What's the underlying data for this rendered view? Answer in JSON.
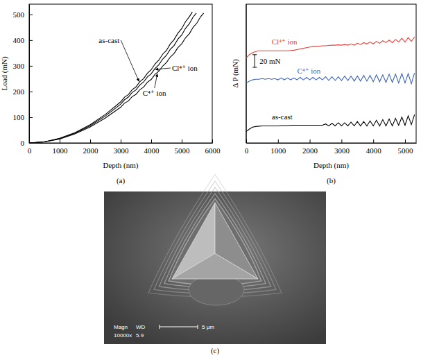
{
  "chart_data": [
    {
      "type": "line",
      "caption": "(a)",
      "x_label": "Depth (nm)",
      "y_label": "Load (mN)",
      "xlim": [
        0,
        6000
      ],
      "xticks": [
        0,
        1000,
        2000,
        3000,
        4000,
        5000,
        6000
      ],
      "ylim": [
        0,
        540
      ],
      "yticks": [
        0,
        100,
        200,
        300,
        400,
        500
      ],
      "series": [
        {
          "name": "as-cast",
          "color": "#000000",
          "x": [
            0,
            500,
            1000,
            1500,
            2000,
            2500,
            3000,
            3125,
            3250,
            3375,
            3500,
            3625,
            3750,
            3875,
            4000,
            4125,
            4250,
            4375,
            4500,
            4625,
            4750,
            4875,
            5000,
            5125,
            5250,
            5350
          ],
          "values": [
            0,
            4,
            18,
            40,
            71,
            111,
            160,
            178,
            188,
            207,
            218,
            238,
            250,
            271,
            285,
            307,
            322,
            345,
            360,
            385,
            402,
            427,
            445,
            472,
            491,
            510
          ]
        },
        {
          "name": "Cl⁴⁺ ion",
          "color": "#000000",
          "x": [
            0,
            500,
            1000,
            1500,
            2000,
            2500,
            3000,
            3125,
            3250,
            3375,
            3500,
            3625,
            3750,
            3875,
            4000,
            4125,
            4250,
            4375,
            4500,
            4625,
            4750,
            4875,
            5000,
            5125,
            5250,
            5375,
            5480
          ],
          "values": [
            0,
            4,
            17,
            38,
            67,
            105,
            151,
            168,
            178,
            196,
            206,
            225,
            237,
            257,
            269,
            290,
            304,
            326,
            341,
            364,
            379,
            404,
            420,
            446,
            464,
            490,
            505
          ]
        },
        {
          "name": "C⁴⁺ ion",
          "color": "#000000",
          "x": [
            0,
            500,
            1000,
            1500,
            2000,
            2500,
            3000,
            3125,
            3250,
            3375,
            3500,
            3625,
            3750,
            3875,
            4000,
            4125,
            4250,
            4375,
            4500,
            4625,
            4750,
            4875,
            5000,
            5125,
            5250,
            5375,
            5500,
            5625,
            5720
          ],
          "values": [
            0,
            4,
            15,
            35,
            62,
            97,
            139,
            155,
            163,
            180,
            189,
            207,
            217,
            236,
            247,
            267,
            279,
            299,
            313,
            334,
            348,
            371,
            386,
            409,
            425,
            450,
            467,
            492,
            505
          ]
        }
      ]
    },
    {
      "type": "line",
      "caption": "(b)",
      "x_label": "Depth (nm)",
      "y_label": "Δ P (mN)",
      "xlim": [
        0,
        5350
      ],
      "xticks": [
        0,
        1000,
        2000,
        3000,
        4000,
        5000
      ],
      "ylim": [
        0,
        220
      ],
      "tick_labels": "x",
      "scale_bar": {
        "value": 20,
        "label": "20 mN"
      },
      "x": [
        0,
        100,
        200,
        300,
        400,
        500,
        600,
        700,
        800,
        900,
        1000,
        1100,
        1200,
        1300,
        1400,
        1500,
        1600,
        1700,
        1800,
        1900,
        2000,
        2100,
        2200,
        2300,
        2400,
        2500,
        2600,
        2700,
        2800,
        2900,
        3000,
        3100,
        3200,
        3300,
        3400,
        3500,
        3600,
        3700,
        3800,
        3900,
        4000,
        4100,
        4200,
        4300,
        4400,
        4500,
        4600,
        4700,
        4800,
        4900,
        5000,
        5100,
        5200,
        5300
      ],
      "series": [
        {
          "name": "Cl⁴⁺ ion",
          "color": "#e8403a",
          "values": [
            135,
            140,
            143,
            145,
            146,
            146,
            146,
            146,
            146,
            146,
            146,
            146,
            146,
            146,
            146.5,
            147,
            148,
            149,
            150,
            151,
            152,
            152.5,
            153,
            153.5,
            154,
            154,
            154.5,
            155,
            155,
            155.5,
            155,
            156,
            155,
            157,
            155,
            158,
            156,
            159,
            157,
            160,
            157,
            161,
            158,
            162,
            159,
            163,
            159,
            164,
            160,
            166,
            160,
            167,
            161,
            168
          ]
        },
        {
          "name": "C⁴⁺ ion",
          "color": "#3d62b8",
          "values": [
            95,
            98,
            100,
            101,
            101,
            102,
            101,
            102,
            101,
            102,
            100,
            103,
            100,
            103,
            100,
            103,
            100,
            104,
            100,
            104,
            100,
            104,
            100,
            104,
            100,
            105,
            99,
            105,
            99,
            105,
            99,
            106,
            99,
            106,
            98,
            106,
            98,
            107,
            98,
            107,
            97,
            108,
            97,
            108,
            96,
            109,
            96,
            109,
            95,
            110,
            95,
            110,
            94,
            111
          ]
        },
        {
          "name": "as-cast",
          "color": "#000000",
          "values": [
            18,
            22,
            25,
            26,
            26.5,
            27,
            27,
            27,
            27,
            27,
            27,
            27.5,
            27.5,
            27.5,
            28,
            28,
            28,
            28,
            28,
            28,
            28,
            28,
            28,
            28,
            28,
            30,
            27,
            31,
            27,
            32,
            27,
            32,
            27,
            33,
            27,
            34,
            27,
            34,
            27,
            35,
            27,
            36,
            27,
            37,
            27,
            38,
            27,
            39,
            28,
            41,
            28,
            43,
            29,
            45
          ]
        }
      ]
    },
    {
      "type": "image",
      "caption": "(c)",
      "info": {
        "magnification_label": "Magn",
        "wd_label": "WD",
        "magnification": "10000x",
        "wd": "5.9"
      },
      "scale_bar": {
        "value": 5,
        "label": "5 μm"
      }
    }
  ]
}
